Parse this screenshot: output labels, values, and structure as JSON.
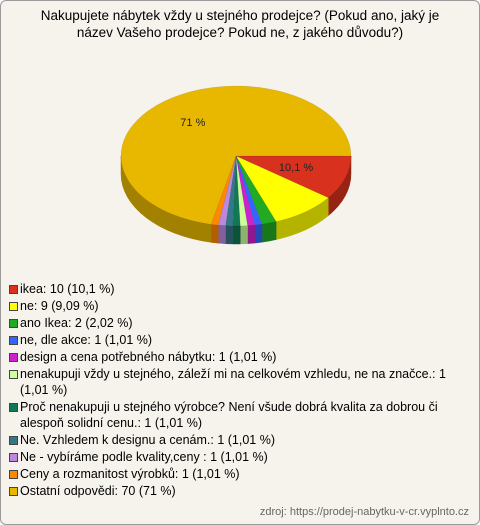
{
  "chart_data": {
    "type": "pie",
    "title": "Nakupujete nábytek vždy u stejného prodejce? (Pokud ano, jaký je název Vašeho prodejce? Pokud ne, z jakého důvodu?)",
    "categories": [
      "ikea: 10 (10,1 %)",
      "ne: 9 (9,09 %)",
      "ano Ikea: 2 (2,02 %)",
      "ne, dle akce: 1 (1,01 %)",
      "design a cena potřebného nábytku: 1 (1,01 %)",
      "nenakupuji vždy u stejného, záleží mi na celkovém vzhledu, ne na značce.: 1 (1,01 %)",
      "Proč nenakupuji u stejného výrobce? Není všude dobrá kvalita za dobrou či alespoň solidní cenu.: 1 (1,01 %)",
      "Ne. Vzhledem k designu a cenám.: 1 (1,01 %)",
      "Ne - vybíráme podle kvality,ceny : 1 (1,01 %)",
      "Ceny a rozmanitost výrobků: 1 (1,01 %)",
      "Ostatní odpovědi: 70 (71 %)"
    ],
    "values": [
      10.1,
      9.09,
      2.02,
      1.01,
      1.01,
      1.01,
      1.01,
      1.01,
      1.01,
      1.01,
      71
    ],
    "value_labels": [
      "10,1 %",
      null,
      null,
      null,
      null,
      null,
      null,
      null,
      null,
      null,
      "71 %"
    ],
    "colors": [
      "#d8321e",
      "#ffff00",
      "#22aa22",
      "#3366ff",
      "#cc22cc",
      "#ccff99",
      "#117755",
      "#337788",
      "#bb88dd",
      "#ff8800",
      "#e8b800"
    ],
    "source": "zdroj: https://prodej-nabytku-v-cr.vyplnto.cz"
  }
}
